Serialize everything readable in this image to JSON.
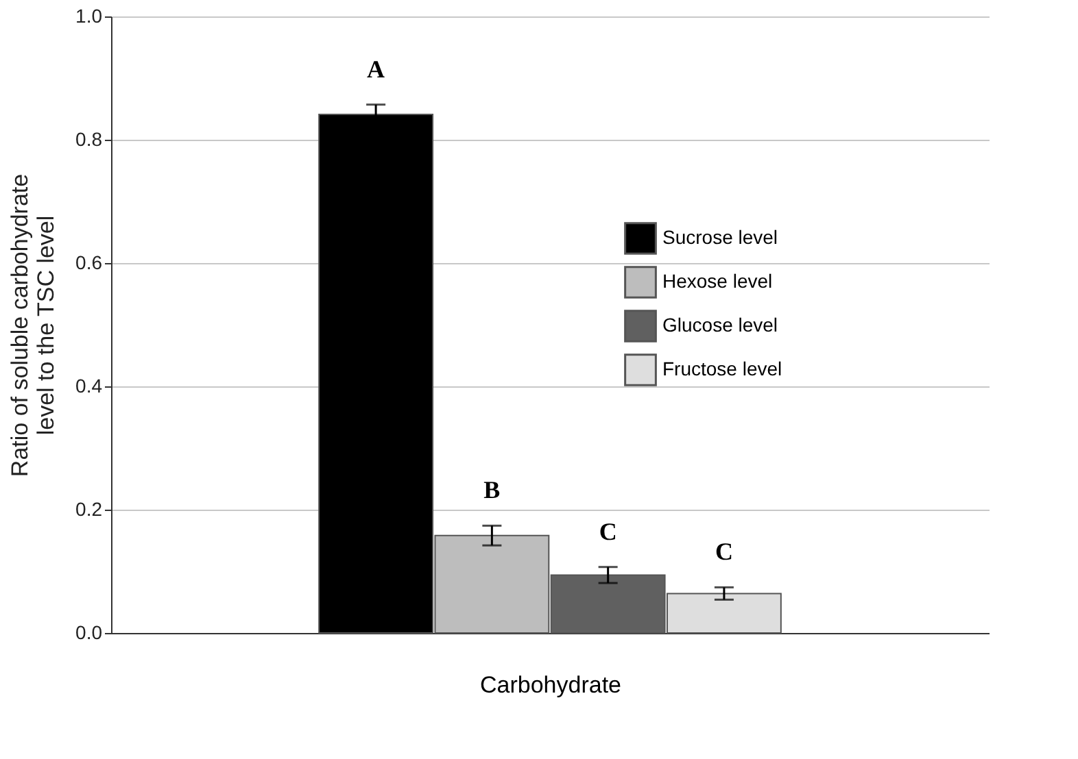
{
  "chart_data": {
    "type": "bar",
    "xlabel": "Carbohydrate",
    "ylabel": "Ratio of soluble carbohydrate\nlevel to the TSC level",
    "categories": [
      null
    ],
    "series": [
      {
        "name": "Sucrose level",
        "color": "#000000",
        "values": [
          0.841
        ],
        "errors": [
          0.016
        ]
      },
      {
        "name": "Hexose level",
        "color": "#bdbdbd",
        "values": [
          0.158
        ],
        "errors": [
          0.016
        ]
      },
      {
        "name": "Glucose level",
        "color": "#606060",
        "values": [
          0.094
        ],
        "errors": [
          0.013
        ]
      },
      {
        "name": "Fructose level",
        "color": "#dedede",
        "values": [
          0.064
        ],
        "errors": [
          0.01
        ]
      }
    ],
    "annotations": [
      "A",
      "B",
      "C",
      "C"
    ],
    "ylim": [
      0,
      1
    ],
    "yticks": [
      {
        "value": 0,
        "label": "0.0"
      },
      0.2,
      0.4,
      0.6,
      0.8,
      {
        "value": 1,
        "label": "1.0"
      }
    ],
    "grid": "y",
    "legend": "top right"
  }
}
